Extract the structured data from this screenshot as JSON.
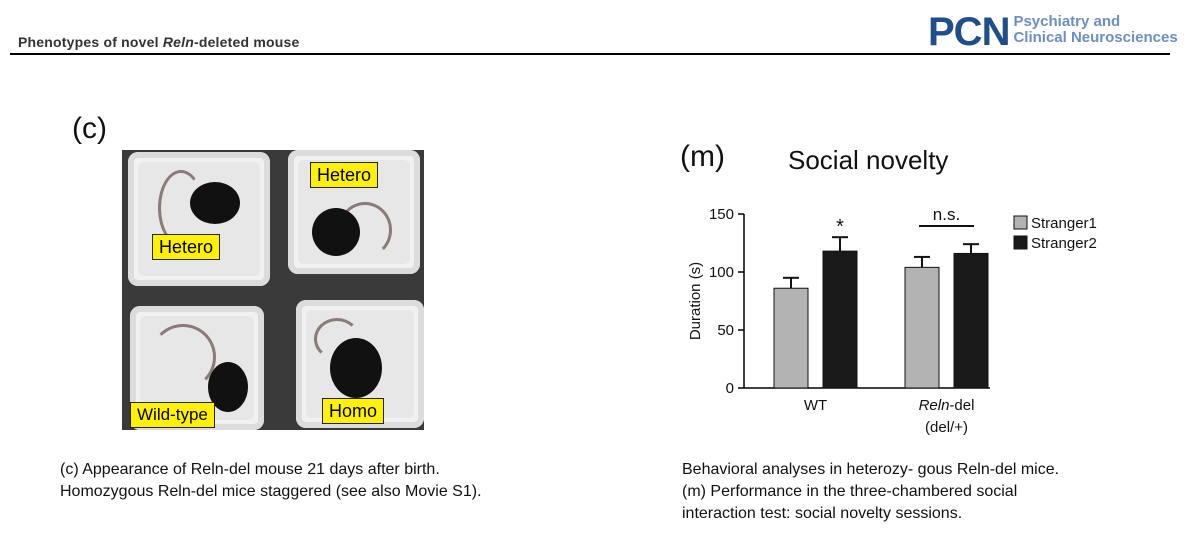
{
  "header": {
    "title_prefix": "Phenotypes of novel ",
    "title_italic": "Reln",
    "title_suffix": "-deleted mouse",
    "logo_mark": "PCN",
    "logo_line1": "Psychiatry and",
    "logo_line2": "Clinical Neurosciences"
  },
  "panel_c": {
    "label": "(c)",
    "tags": [
      "Hetero",
      "Hetero",
      "Wild-type",
      "Homo"
    ],
    "caption_line1": "(c) Appearance of Reln-del mouse 21 days after birth.",
    "caption_line2": "Homozygous Reln-del mice staggered (see also Movie S1)."
  },
  "panel_m": {
    "label": "(m)",
    "title": "Social novelty",
    "caption_line1": "Behavioral analyses in heterozy- gous Reln-del mice.",
    "caption_line2": "(m) Performance in the three-chambered social",
    "caption_line3": "interaction test: social novelty sessions."
  },
  "chart_data": {
    "type": "bar",
    "title": "Social novelty",
    "ylabel": "Duration (s)",
    "ylim": [
      0,
      150
    ],
    "yticks": [
      0,
      50,
      100,
      150
    ],
    "categories": [
      "WT",
      "Reln-del (del/+)"
    ],
    "category_labels": [
      {
        "italic": "",
        "rest": "WT",
        "line2": ""
      },
      {
        "italic": "Reln",
        "rest": "-del",
        "line2": "(del/+)"
      }
    ],
    "series": [
      {
        "name": "Stranger1",
        "values": [
          86,
          104
        ],
        "errors": [
          9,
          9
        ],
        "color": "#b3b3b3"
      },
      {
        "name": "Stranger2",
        "values": [
          118,
          116
        ],
        "errors": [
          12,
          8
        ],
        "color": "#1a1a1a"
      }
    ],
    "annotations": [
      {
        "group": 0,
        "text": "*"
      },
      {
        "group": 1,
        "text": "n.s."
      }
    ],
    "legend_position": "top-right"
  }
}
